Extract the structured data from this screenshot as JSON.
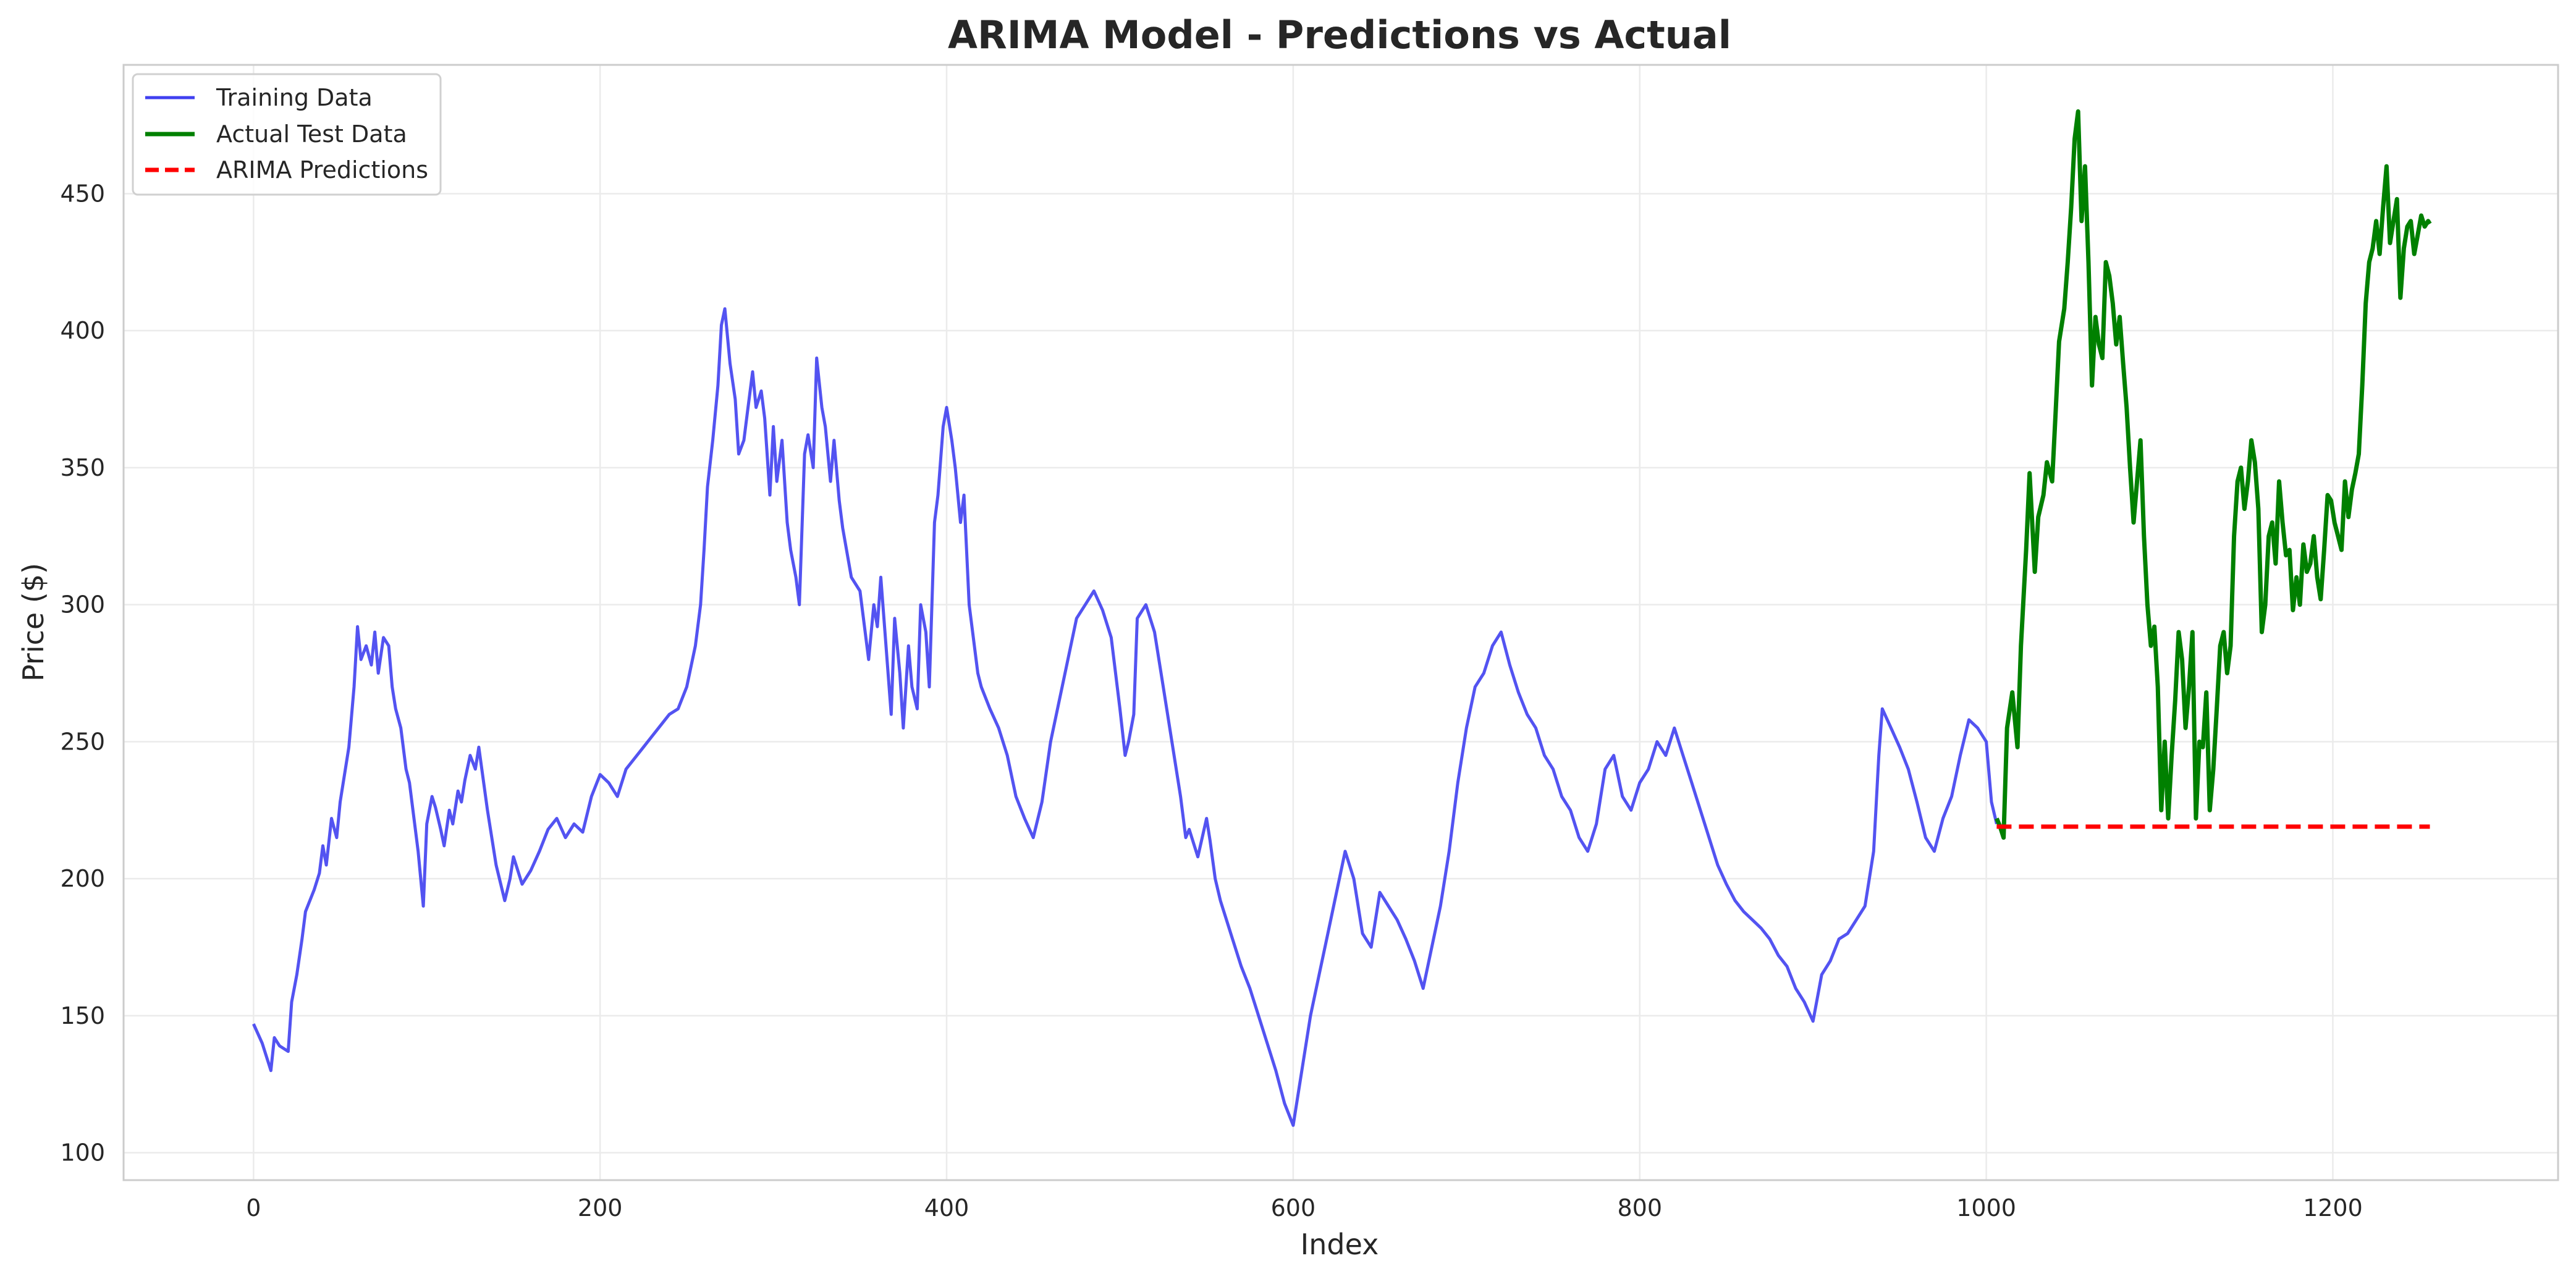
{
  "chart_data": {
    "type": "line",
    "title": "ARIMA Model - Predictions vs Actual",
    "xlabel": "Index",
    "ylabel": "Price ($)",
    "xlim": [
      -75,
      1330
    ],
    "ylim": [
      90,
      497
    ],
    "x_ticks": [
      0,
      200,
      400,
      600,
      800,
      1000,
      1200
    ],
    "y_ticks": [
      100,
      150,
      200,
      250,
      300,
      350,
      400,
      450
    ],
    "grid": true,
    "legend_position": "top-left",
    "series": [
      {
        "name": "Training Data",
        "color": "#4040f0",
        "style": "solid",
        "x": [
          0,
          5,
          10,
          12,
          15,
          20,
          22,
          25,
          28,
          30,
          35,
          38,
          40,
          42,
          45,
          48,
          50,
          55,
          58,
          60,
          62,
          65,
          68,
          70,
          72,
          75,
          78,
          80,
          82,
          85,
          88,
          90,
          92,
          95,
          98,
          100,
          103,
          105,
          108,
          110,
          113,
          115,
          118,
          120,
          122,
          125,
          128,
          130,
          135,
          140,
          145,
          148,
          150,
          155,
          160,
          165,
          170,
          175,
          180,
          185,
          190,
          195,
          200,
          205,
          210,
          215,
          220,
          225,
          230,
          235,
          240,
          245,
          250,
          255,
          258,
          260,
          262,
          265,
          268,
          270,
          272,
          275,
          278,
          280,
          283,
          285,
          288,
          290,
          293,
          295,
          298,
          300,
          302,
          305,
          308,
          310,
          313,
          315,
          318,
          320,
          323,
          325,
          328,
          330,
          333,
          335,
          338,
          340,
          345,
          350,
          355,
          358,
          360,
          362,
          365,
          368,
          370,
          373,
          375,
          378,
          380,
          383,
          385,
          388,
          390,
          393,
          395,
          398,
          400,
          403,
          405,
          408,
          410,
          413,
          415,
          418,
          420,
          425,
          430,
          435,
          440,
          445,
          450,
          455,
          460,
          465,
          470,
          475,
          480,
          485,
          490,
          495,
          500,
          503,
          505,
          508,
          510,
          515,
          520,
          525,
          530,
          535,
          538,
          540,
          545,
          550,
          552,
          555,
          558,
          560,
          565,
          570,
          575,
          580,
          585,
          590,
          595,
          600,
          605,
          610,
          615,
          620,
          625,
          630,
          635,
          640,
          645,
          650,
          655,
          660,
          665,
          670,
          675,
          680,
          685,
          690,
          695,
          700,
          705,
          710,
          715,
          720,
          725,
          730,
          735,
          740,
          745,
          750,
          755,
          760,
          765,
          770,
          775,
          780,
          785,
          790,
          795,
          800,
          805,
          810,
          815,
          820,
          825,
          830,
          835,
          840,
          845,
          850,
          855,
          860,
          865,
          870,
          875,
          880,
          885,
          890,
          895,
          900,
          905,
          910,
          915,
          920,
          925,
          930,
          935,
          938,
          940,
          945,
          950,
          955,
          960,
          965,
          970,
          975,
          980,
          985,
          990,
          995,
          1000,
          1003,
          1006
        ],
        "y": [
          147,
          140,
          130,
          142,
          139,
          137,
          155,
          165,
          178,
          188,
          196,
          202,
          212,
          205,
          222,
          215,
          228,
          248,
          270,
          292,
          280,
          285,
          278,
          290,
          275,
          288,
          285,
          270,
          262,
          255,
          240,
          235,
          225,
          210,
          190,
          220,
          230,
          226,
          218,
          212,
          225,
          220,
          232,
          228,
          236,
          245,
          240,
          248,
          225,
          205,
          192,
          200,
          208,
          198,
          203,
          210,
          218,
          222,
          215,
          220,
          217,
          230,
          238,
          235,
          230,
          240,
          244,
          248,
          252,
          256,
          260,
          262,
          270,
          285,
          300,
          320,
          343,
          360,
          380,
          402,
          408,
          388,
          375,
          355,
          360,
          370,
          385,
          372,
          378,
          368,
          340,
          365,
          345,
          360,
          330,
          320,
          310,
          300,
          355,
          362,
          350,
          390,
          372,
          365,
          345,
          360,
          338,
          328,
          310,
          305,
          280,
          300,
          292,
          310,
          285,
          260,
          295,
          275,
          255,
          285,
          270,
          262,
          300,
          290,
          270,
          330,
          340,
          365,
          372,
          360,
          350,
          330,
          340,
          300,
          290,
          275,
          270,
          262,
          255,
          245,
          230,
          222,
          215,
          228,
          250,
          265,
          280,
          295,
          300,
          305,
          298,
          288,
          262,
          245,
          250,
          260,
          295,
          300,
          290,
          270,
          250,
          230,
          215,
          218,
          208,
          222,
          214,
          200,
          192,
          188,
          178,
          168,
          160,
          150,
          140,
          130,
          118,
          110,
          130,
          150,
          165,
          180,
          195,
          210,
          200,
          180,
          175,
          195,
          190,
          185,
          178,
          170,
          160,
          175,
          190,
          210,
          235,
          255,
          270,
          275,
          285,
          290,
          278,
          268,
          260,
          255,
          245,
          240,
          230,
          225,
          215,
          210,
          220,
          240,
          245,
          230,
          225,
          235,
          240,
          250,
          245,
          255,
          245,
          235,
          225,
          215,
          205,
          198,
          192,
          188,
          185,
          182,
          178,
          172,
          168,
          160,
          155,
          148,
          165,
          170,
          178,
          180,
          185,
          190,
          210,
          245,
          262,
          255,
          248,
          240,
          228,
          215,
          210,
          222,
          230,
          245,
          258,
          255,
          250,
          228,
          220
        ]
      },
      {
        "name": "Actual Test Data",
        "color": "#008000",
        "style": "solid",
        "x": [
          1006,
          1008,
          1010,
          1012,
          1015,
          1018,
          1020,
          1023,
          1025,
          1028,
          1030,
          1033,
          1035,
          1038,
          1040,
          1042,
          1045,
          1047,
          1049,
          1051,
          1053,
          1055,
          1057,
          1059,
          1061,
          1063,
          1065,
          1067,
          1069,
          1071,
          1073,
          1075,
          1077,
          1079,
          1081,
          1083,
          1085,
          1087,
          1089,
          1091,
          1093,
          1095,
          1097,
          1099,
          1101,
          1103,
          1105,
          1107,
          1109,
          1111,
          1113,
          1115,
          1117,
          1119,
          1121,
          1123,
          1125,
          1127,
          1129,
          1131,
          1133,
          1135,
          1137,
          1139,
          1141,
          1143,
          1145,
          1147,
          1149,
          1151,
          1153,
          1155,
          1157,
          1159,
          1161,
          1163,
          1165,
          1167,
          1169,
          1171,
          1173,
          1175,
          1177,
          1179,
          1181,
          1183,
          1185,
          1187,
          1189,
          1191,
          1193,
          1195,
          1197,
          1199,
          1201,
          1203,
          1205,
          1207,
          1209,
          1211,
          1213,
          1215,
          1217,
          1219,
          1221,
          1223,
          1225,
          1227,
          1229,
          1231,
          1233,
          1235,
          1237,
          1239,
          1241,
          1243,
          1245,
          1247,
          1249,
          1251,
          1253,
          1255,
          1256
        ],
        "y": [
          222,
          219,
          215,
          255,
          268,
          248,
          285,
          320,
          348,
          312,
          332,
          340,
          352,
          345,
          370,
          396,
          408,
          425,
          445,
          470,
          480,
          440,
          460,
          425,
          380,
          405,
          395,
          390,
          425,
          420,
          410,
          395,
          405,
          388,
          372,
          350,
          330,
          345,
          360,
          325,
          300,
          285,
          292,
          270,
          225,
          250,
          222,
          245,
          265,
          290,
          280,
          255,
          270,
          290,
          222,
          250,
          248,
          268,
          225,
          240,
          262,
          285,
          290,
          275,
          285,
          325,
          345,
          350,
          335,
          345,
          360,
          352,
          335,
          290,
          300,
          325,
          330,
          315,
          345,
          330,
          318,
          320,
          298,
          310,
          300,
          322,
          312,
          315,
          325,
          310,
          302,
          320,
          340,
          338,
          330,
          325,
          320,
          345,
          332,
          342,
          348,
          355,
          380,
          410,
          425,
          430,
          440,
          428,
          445,
          460,
          432,
          440,
          448,
          412,
          430,
          438,
          440,
          428,
          435,
          442,
          438,
          440,
          439
        ],
        "partial_note": ""
      },
      {
        "name": "ARIMA Predictions",
        "color": "#ff0000",
        "style": "dashed",
        "x": [
          1006,
          1256
        ],
        "y": [
          219,
          219
        ]
      }
    ]
  }
}
